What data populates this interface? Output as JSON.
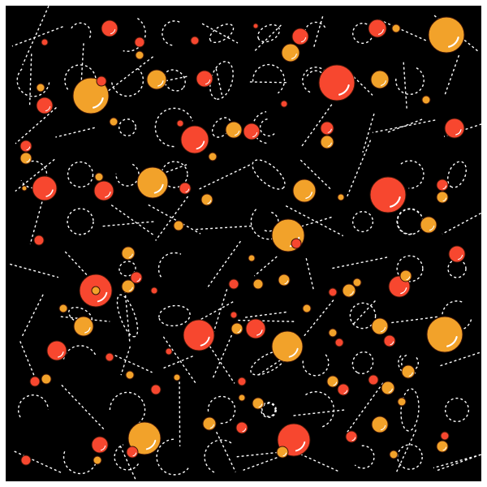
{
  "artwork": {
    "colors": {
      "frame": "#ffffff",
      "background": "#000000",
      "line": "#ffffff",
      "red": "#f7472f",
      "orange": "#f2a22a",
      "outline": "#3a1408",
      "highlight": "#ffffff"
    },
    "line_style": "dashed"
  }
}
